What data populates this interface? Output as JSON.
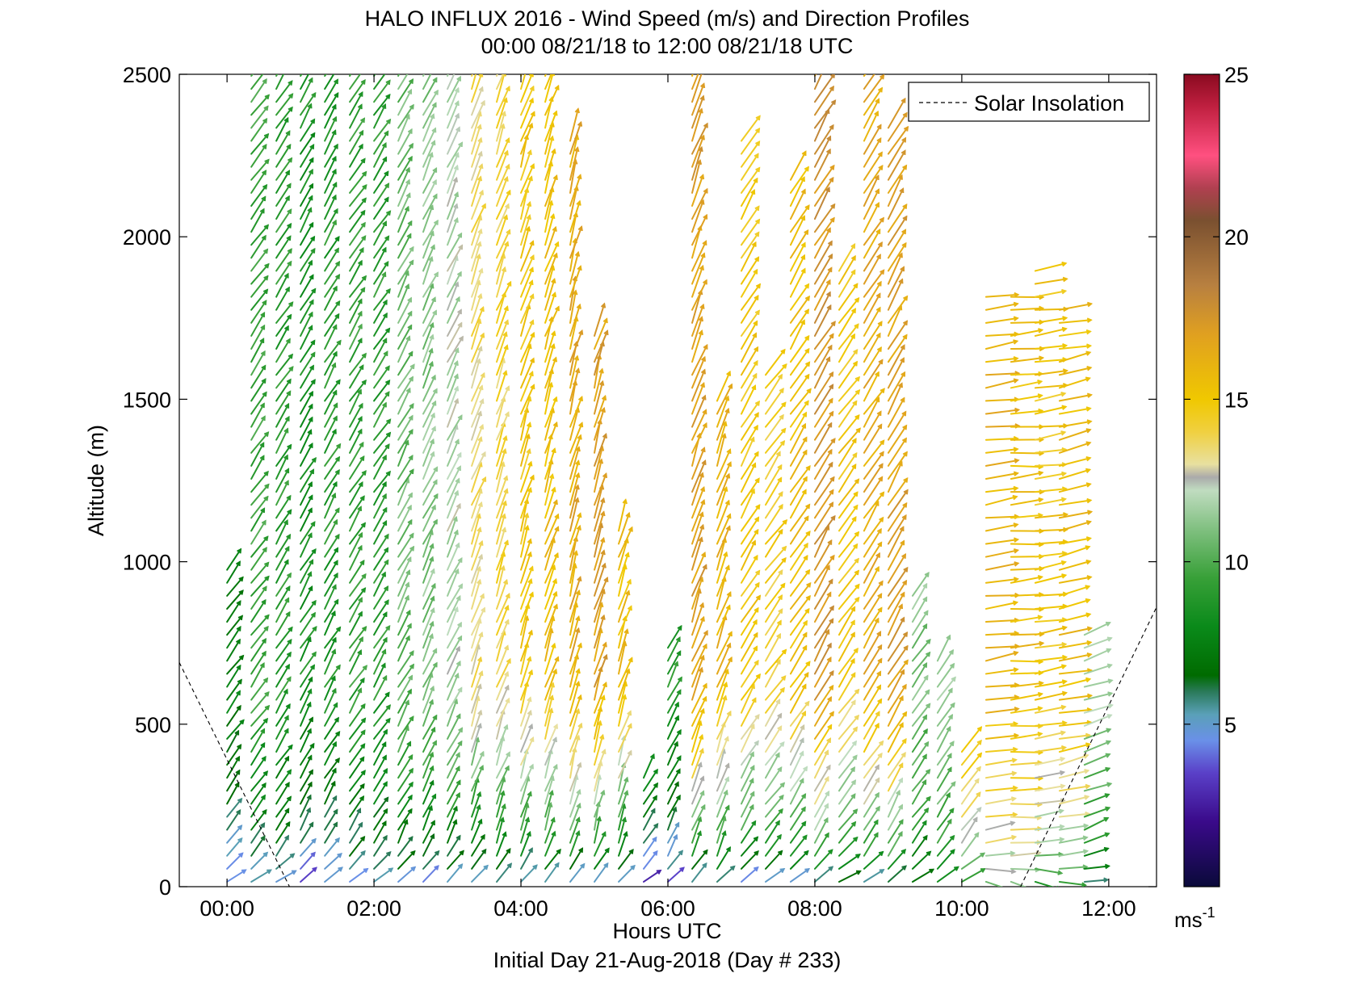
{
  "chart_data": {
    "type": "wind-barb-profile",
    "title": "HALO INFLUX 2016 - Wind Speed (m/s) and Direction Profiles",
    "subtitle": "00:00 08/21/18 to 12:00 08/21/18  UTC",
    "xlabel": "Hours UTC",
    "ylabel": "Altitude (m)",
    "footer": "Initial Day 21-Aug-2018 (Day # 233)",
    "xlim": [
      -0.65,
      12.65
    ],
    "ylim": [
      0,
      2500
    ],
    "x_tick_values": [
      0,
      2,
      4,
      6,
      8,
      10,
      12
    ],
    "x_tick_labels": [
      "00:00",
      "02:00",
      "04:00",
      "06:00",
      "08:00",
      "10:00",
      "12:00"
    ],
    "y_tick_values": [
      0,
      500,
      1000,
      1500,
      2000,
      2500
    ],
    "y_tick_labels": [
      "0",
      "500",
      "1000",
      "1500",
      "2000",
      "2500"
    ],
    "legend": {
      "label": "Solar Insolation",
      "position": "top-right",
      "style": "dashed-line"
    },
    "colorbar": {
      "min": 0,
      "max": 25,
      "tick_values": [
        5,
        10,
        15,
        20,
        25
      ],
      "tick_labels": [
        "5",
        "10",
        "15",
        "20",
        "25"
      ],
      "unit_label": "ms",
      "unit_exponent": "-1",
      "colormap": [
        [
          0,
          "#0a0a3a"
        ],
        [
          2,
          "#3a0a8a"
        ],
        [
          3.5,
          "#5a40c8"
        ],
        [
          4.5,
          "#6a90e8"
        ],
        [
          5.3,
          "#5aa0b8"
        ],
        [
          6,
          "#2a7a5a"
        ],
        [
          6.5,
          "#006b00"
        ],
        [
          8,
          "#0a8a1a"
        ],
        [
          9.5,
          "#38a038"
        ],
        [
          11,
          "#80c080"
        ],
        [
          12.2,
          "#c0dcc0"
        ],
        [
          12.6,
          "#aaaaaa"
        ],
        [
          13,
          "#e8e0a0"
        ],
        [
          14,
          "#f0d040"
        ],
        [
          15,
          "#f0c800"
        ],
        [
          17,
          "#e0a020"
        ],
        [
          18.5,
          "#b88040"
        ],
        [
          20.5,
          "#7a5030"
        ],
        [
          21.5,
          "#b04050"
        ],
        [
          22.5,
          "#ff5080"
        ],
        [
          24,
          "#c02040"
        ],
        [
          25,
          "#8a0a20"
        ]
      ]
    },
    "series": [
      {
        "time": 0.0,
        "top": 1000,
        "speed_hi": 7.5,
        "speed_lo": 4.0,
        "dir_deg": 215
      },
      {
        "time": 0.33,
        "top": 2500,
        "speed_hi": 9.5,
        "speed_lo": 4.2,
        "dir_deg": 215
      },
      {
        "time": 0.67,
        "top": 2500,
        "speed_hi": 9.0,
        "speed_lo": 4.0,
        "dir_deg": 212
      },
      {
        "time": 1.0,
        "top": 2500,
        "speed_hi": 8.5,
        "speed_lo": 3.0,
        "dir_deg": 210
      },
      {
        "time": 1.33,
        "top": 2500,
        "speed_hi": 8.8,
        "speed_lo": 3.5,
        "dir_deg": 210
      },
      {
        "time": 1.67,
        "top": 2500,
        "speed_hi": 9.2,
        "speed_lo": 3.8,
        "dir_deg": 212
      },
      {
        "time": 2.0,
        "top": 2500,
        "speed_hi": 9.0,
        "speed_lo": 4.0,
        "dir_deg": 212
      },
      {
        "time": 2.33,
        "top": 2500,
        "speed_hi": 10.5,
        "speed_lo": 4.2,
        "dir_deg": 208
      },
      {
        "time": 2.67,
        "top": 2500,
        "speed_hi": 11.0,
        "speed_lo": 3.0,
        "dir_deg": 205
      },
      {
        "time": 3.0,
        "top": 2500,
        "speed_hi": 12.0,
        "speed_lo": 3.5,
        "dir_deg": 205
      },
      {
        "time": 3.33,
        "top": 2500,
        "speed_hi": 13.5,
        "speed_lo": 3.0,
        "dir_deg": 200
      },
      {
        "time": 3.67,
        "top": 2500,
        "speed_hi": 14.0,
        "speed_lo": 3.5,
        "dir_deg": 200
      },
      {
        "time": 4.0,
        "top": 2500,
        "speed_hi": 15.0,
        "speed_lo": 3.0,
        "dir_deg": 198
      },
      {
        "time": 4.33,
        "top": 2500,
        "speed_hi": 15.5,
        "speed_lo": 3.2,
        "dir_deg": 198
      },
      {
        "time": 4.67,
        "top": 2300,
        "speed_hi": 16.5,
        "speed_lo": 3.0,
        "dir_deg": 196
      },
      {
        "time": 5.0,
        "top": 1700,
        "speed_hi": 17.0,
        "speed_lo": 2.8,
        "dir_deg": 196
      },
      {
        "time": 5.33,
        "top": 1100,
        "speed_hi": 15.5,
        "speed_lo": 2.5,
        "dir_deg": 198
      },
      {
        "time": 5.67,
        "top": 350,
        "speed_hi": 10.0,
        "speed_lo": 2.0,
        "dir_deg": 210
      },
      {
        "time": 6.0,
        "top": 750,
        "speed_hi": 9.0,
        "speed_lo": 3.0,
        "dir_deg": 205
      },
      {
        "time": 6.33,
        "top": 2500,
        "speed_hi": 17.0,
        "speed_lo": 3.0,
        "dir_deg": 200
      },
      {
        "time": 6.67,
        "top": 1500,
        "speed_hi": 16.0,
        "speed_lo": 3.5,
        "dir_deg": 200
      },
      {
        "time": 7.0,
        "top": 2300,
        "speed_hi": 15.0,
        "speed_lo": 3.0,
        "dir_deg": 210
      },
      {
        "time": 7.33,
        "top": 1600,
        "speed_hi": 14.5,
        "speed_lo": 3.5,
        "dir_deg": 215
      },
      {
        "time": 7.67,
        "top": 2200,
        "speed_hi": 15.5,
        "speed_lo": 3.5,
        "dir_deg": 212
      },
      {
        "time": 8.0,
        "top": 2500,
        "speed_hi": 17.5,
        "speed_lo": 4.0,
        "dir_deg": 210
      },
      {
        "time": 8.33,
        "top": 1900,
        "speed_hi": 15.0,
        "speed_lo": 4.0,
        "dir_deg": 215
      },
      {
        "time": 8.67,
        "top": 2500,
        "speed_hi": 16.5,
        "speed_lo": 4.0,
        "dir_deg": 212
      },
      {
        "time": 9.0,
        "top": 2350,
        "speed_hi": 17.0,
        "speed_lo": 5.0,
        "dir_deg": 210
      },
      {
        "time": 9.33,
        "top": 900,
        "speed_hi": 11.0,
        "speed_lo": 6.0,
        "dir_deg": 215
      },
      {
        "time": 9.67,
        "top": 700,
        "speed_hi": 12.0,
        "speed_lo": 7.0,
        "dir_deg": 212
      },
      {
        "time": 10.0,
        "top": 450,
        "speed_hi": 17.0,
        "speed_lo": 8.0,
        "dir_deg": 215
      },
      {
        "time": 10.33,
        "top": 1850,
        "speed_hi": 16.0,
        "speed_lo": 10.0,
        "dir_deg": 262
      },
      {
        "time": 10.67,
        "top": 1850,
        "speed_hi": 15.5,
        "speed_lo": 10.5,
        "dir_deg": 265
      },
      {
        "time": 11.0,
        "top": 1900,
        "speed_hi": 15.0,
        "speed_lo": 8.0,
        "dir_deg": 262
      },
      {
        "time": 11.33,
        "top": 1800,
        "speed_hi": 15.5,
        "speed_lo": 8.0,
        "dir_deg": 258
      },
      {
        "time": 11.67,
        "top": 800,
        "speed_hi": 12.0,
        "speed_lo": 5.0,
        "dir_deg": 250
      }
    ],
    "solar_insolation_line": {
      "left_segment": [
        [
          -0.65,
          690
        ],
        [
          0.85,
          0
        ]
      ],
      "right_segment": [
        [
          10.8,
          0
        ],
        [
          12.65,
          860
        ]
      ]
    }
  }
}
